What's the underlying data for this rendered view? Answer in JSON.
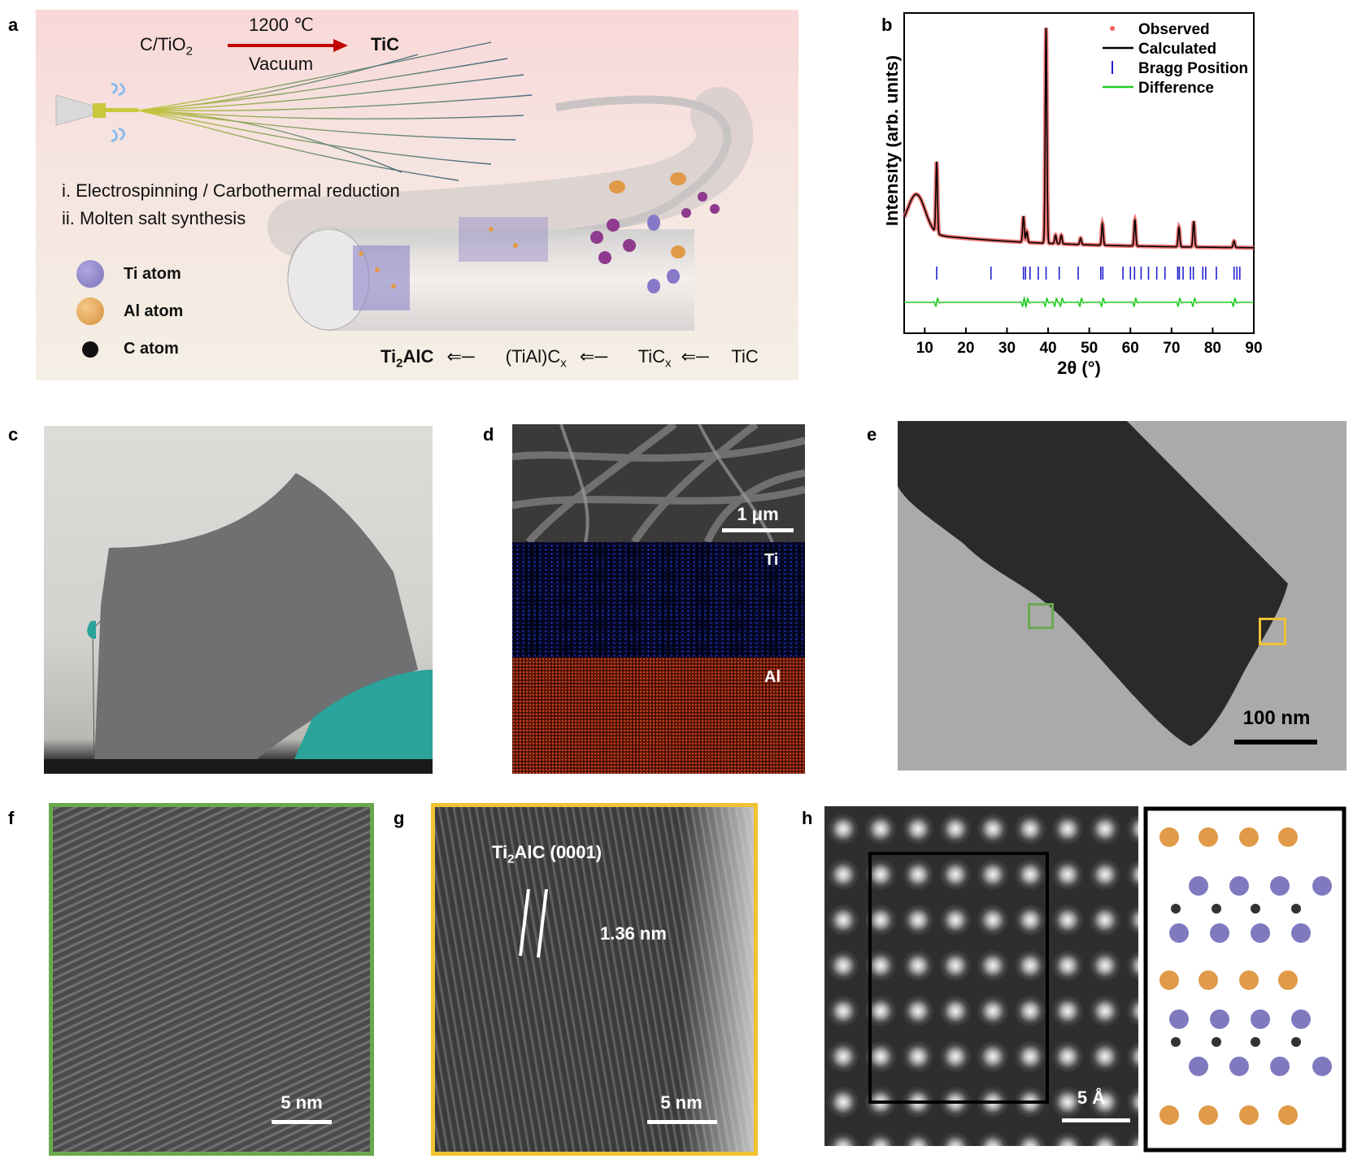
{
  "panel_letters": {
    "a": "a",
    "b": "b",
    "c": "c",
    "d": "d",
    "e": "e",
    "f": "f",
    "g": "g",
    "h": "h"
  },
  "panel_a": {
    "reactant": "C/TiO",
    "reactant_sub": "2",
    "temperature": "1200 ℃",
    "condition": "Vacuum",
    "product": "TiC",
    "step_i": "i. Electrospinning / Carbothermal reduction",
    "step_ii": "ii. Molten salt synthesis",
    "legend": [
      {
        "label": "Ti atom",
        "color": "#8080c0"
      },
      {
        "label": "Al atom",
        "color": "#e0a050"
      },
      {
        "label": "C atom",
        "color": "#1a1a1a"
      }
    ],
    "pathway": {
      "p1_main": "Ti",
      "p1_sub": "2",
      "p1_tail": "AlC",
      "p2_main": "(TiAl)C",
      "p2_sub": "x",
      "p3_main": "TiC",
      "p3_sub": "x",
      "p4_main": "TiC"
    }
  },
  "chart_data": {
    "type": "line",
    "title": "",
    "xlabel": "2θ (°)",
    "ylabel": "Intensity (arb. units)",
    "xlim": [
      5,
      90
    ],
    "xticks": [
      10,
      20,
      30,
      40,
      50,
      60,
      70,
      80,
      90
    ],
    "legend_position": "top-right",
    "legend": [
      {
        "name": "Observed",
        "color": "#f06060",
        "style": "dots"
      },
      {
        "name": "Calculated",
        "color": "#000000",
        "style": "line"
      },
      {
        "name": "Bragg Position",
        "color": "#2020d0",
        "style": "tick"
      },
      {
        "name": "Difference",
        "color": "#22cc22",
        "style": "line"
      }
    ],
    "peaks": [
      {
        "x": 12.9,
        "y": 0.33
      },
      {
        "x": 34.0,
        "y": 0.12
      },
      {
        "x": 34.8,
        "y": 0.05
      },
      {
        "x": 39.5,
        "y": 1.0
      },
      {
        "x": 41.8,
        "y": 0.04
      },
      {
        "x": 43.2,
        "y": 0.04
      },
      {
        "x": 47.9,
        "y": 0.03
      },
      {
        "x": 53.2,
        "y": 0.1
      },
      {
        "x": 61.1,
        "y": 0.12
      },
      {
        "x": 71.8,
        "y": 0.09
      },
      {
        "x": 75.4,
        "y": 0.12
      },
      {
        "x": 85.2,
        "y": 0.03
      }
    ],
    "bragg_positions": [
      12.9,
      26.1,
      34.0,
      34.5,
      35.6,
      37.6,
      39.5,
      42.7,
      47.3,
      52.8,
      53.3,
      58.2,
      60.0,
      61.0,
      62.6,
      64.4,
      66.4,
      68.4,
      71.5,
      71.9,
      72.8,
      74.6,
      75.3,
      77.6,
      78.3,
      80.9,
      85.2,
      85.9,
      86.6
    ]
  },
  "panel_d": {
    "scale": "1 μm",
    "map_ti": "Ti",
    "map_al": "Al",
    "ti_color": "#1530c0",
    "al_color": "#c0401a"
  },
  "panel_e": {
    "scale": "100 nm",
    "box_green": "#6aa84f",
    "box_yellow": "#f1c232"
  },
  "panel_f": {
    "scale": "5 nm"
  },
  "panel_g": {
    "label_main": "Ti",
    "label_sub": "2",
    "label_tail": "AlC (0001)",
    "spacing": "1.36 nm",
    "scale": "5 nm"
  },
  "panel_h": {
    "scale": "5 Å"
  }
}
